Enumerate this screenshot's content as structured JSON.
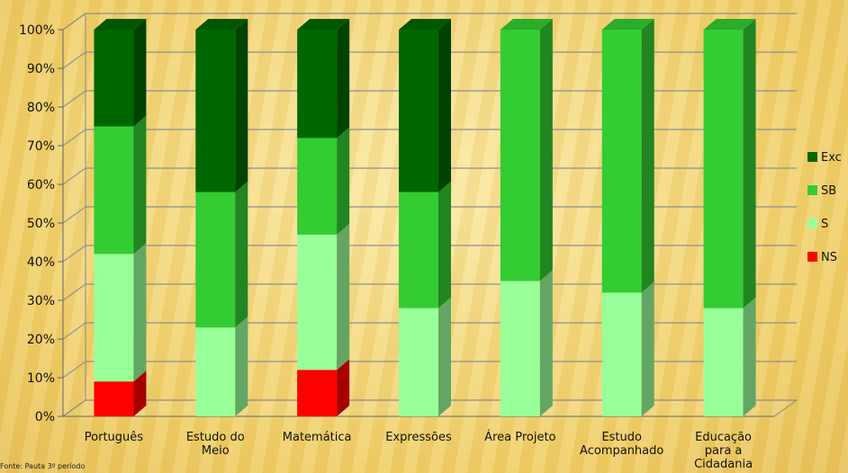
{
  "chart_data": {
    "type": "bar",
    "stacked": true,
    "percent": true,
    "categories": [
      [
        "Português"
      ],
      [
        "Estudo do",
        "Meio"
      ],
      [
        "Matemática"
      ],
      [
        "Expressões"
      ],
      [
        "Área Projeto"
      ],
      [
        "Estudo",
        "Acompanhado"
      ],
      [
        "Educação",
        "para a",
        "Cidadania"
      ]
    ],
    "series": [
      {
        "name": "NS",
        "color": "#ff0000",
        "values": [
          9,
          0,
          12,
          0,
          0,
          0,
          0
        ]
      },
      {
        "name": "S",
        "color": "#99ff99",
        "values": [
          33,
          23,
          35,
          28,
          35,
          32,
          28
        ]
      },
      {
        "name": "SB",
        "color": "#33cc33",
        "values": [
          33,
          35,
          25,
          30,
          65,
          68,
          72
        ]
      },
      {
        "name": "Exc",
        "color": "#006600",
        "values": [
          25,
          42,
          28,
          42,
          0,
          0,
          0
        ]
      }
    ],
    "yticks": [
      "0%",
      "10%",
      "20%",
      "30%",
      "40%",
      "50%",
      "60%",
      "70%",
      "80%",
      "90%",
      "100%"
    ],
    "ylim": [
      0,
      100
    ],
    "grid": true,
    "legend_position": "right",
    "legend_order": [
      "Exc",
      "SB",
      "S",
      "NS"
    ]
  },
  "footnote": "Fonte: Pauta 3º período"
}
